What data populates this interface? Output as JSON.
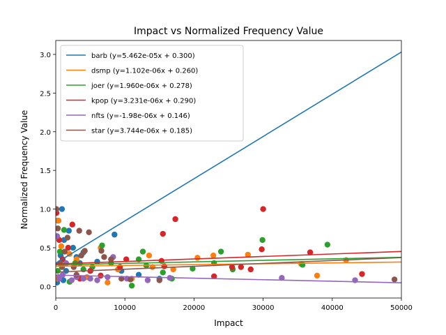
{
  "chart_data": {
    "type": "scatter",
    "title": "Impact vs Normalized Frequency Value",
    "xlabel": "Impact",
    "ylabel": "Normalized Frequency Value",
    "xlim": [
      0,
      50000
    ],
    "ylim": [
      -0.15,
      3.18
    ],
    "x_ticks": [
      0,
      10000,
      20000,
      30000,
      40000,
      50000
    ],
    "x_tick_labels": [
      "0",
      "10000",
      "20000",
      "30000",
      "40000",
      "50000"
    ],
    "y_ticks": [
      0.0,
      0.5,
      1.0,
      1.5,
      2.0,
      2.5,
      3.0
    ],
    "y_tick_labels": [
      "0.0",
      "0.5",
      "1.0",
      "1.5",
      "2.0",
      "2.5",
      "3.0"
    ],
    "grid": false,
    "legend_position": "top-left",
    "series": [
      {
        "name": "barb",
        "color": "#1f77b4",
        "fit_label": "barb (y=5.462e-05x + 0.300)",
        "slope": 5.462e-05,
        "intercept": 0.3,
        "points": [
          [
            200,
            0.05
          ],
          [
            400,
            0.12
          ],
          [
            600,
            0.3
          ],
          [
            900,
            1.0
          ],
          [
            1200,
            0.6
          ],
          [
            1500,
            0.2
          ],
          [
            1900,
            0.72
          ],
          [
            2500,
            0.5
          ],
          [
            3000,
            0.38
          ],
          [
            3500,
            0.3
          ],
          [
            4000,
            0.44
          ],
          [
            5000,
            0.2
          ],
          [
            6000,
            0.32
          ],
          [
            8500,
            0.67
          ],
          [
            9500,
            0.2
          ],
          [
            12000,
            0.15
          ],
          [
            15000,
            0.1
          ],
          [
            300,
            0.85
          ],
          [
            700,
            0.4
          ],
          [
            1100,
            0.08
          ]
        ]
      },
      {
        "name": "dsmp",
        "color": "#ff7f0e",
        "fit_label": "dsmp (y=1.102e-06x + 0.260)",
        "slope": 1.102e-06,
        "intercept": 0.26,
        "points": [
          [
            200,
            0.1
          ],
          [
            400,
            0.85
          ],
          [
            800,
            0.52
          ],
          [
            1200,
            0.3
          ],
          [
            2000,
            0.42
          ],
          [
            3000,
            0.35
          ],
          [
            4500,
            0.12
          ],
          [
            6500,
            0.5
          ],
          [
            7500,
            0.05
          ],
          [
            9000,
            0.22
          ],
          [
            11000,
            0.1
          ],
          [
            13500,
            0.4
          ],
          [
            14000,
            0.25
          ],
          [
            17000,
            0.22
          ],
          [
            20500,
            0.37
          ],
          [
            22800,
            0.4
          ],
          [
            27800,
            0.41
          ],
          [
            35500,
            0.29
          ],
          [
            37800,
            0.14
          ],
          [
            42000,
            0.34
          ]
        ]
      },
      {
        "name": "joer",
        "color": "#2ca02c",
        "fit_label": "joer (y=1.960e-06x + 0.278)",
        "slope": 1.96e-06,
        "intercept": 0.278,
        "points": [
          [
            300,
            0.2
          ],
          [
            600,
            0.45
          ],
          [
            1200,
            0.73
          ],
          [
            2000,
            0.06
          ],
          [
            2800,
            0.3
          ],
          [
            4000,
            0.22
          ],
          [
            5300,
            0.25
          ],
          [
            6700,
            0.53
          ],
          [
            8000,
            0.3
          ],
          [
            11000,
            0.01
          ],
          [
            12000,
            0.35
          ],
          [
            12600,
            0.45
          ],
          [
            13100,
            0.27
          ],
          [
            15500,
            0.18
          ],
          [
            16800,
            0.1
          ],
          [
            19800,
            0.23
          ],
          [
            22900,
            0.3
          ],
          [
            23900,
            0.45
          ],
          [
            25600,
            0.22
          ],
          [
            29900,
            0.6
          ],
          [
            35700,
            0.28
          ],
          [
            39300,
            0.54
          ]
        ]
      },
      {
        "name": "kpop",
        "color": "#d62728",
        "fit_label": "kpop (y=3.231e-06x + 0.290)",
        "slope": 3.231e-06,
        "intercept": 0.29,
        "points": [
          [
            100,
            0.95
          ],
          [
            500,
            0.6
          ],
          [
            1000,
            0.35
          ],
          [
            1800,
            0.5
          ],
          [
            2400,
            0.8
          ],
          [
            3500,
            0.1
          ],
          [
            5000,
            0.2
          ],
          [
            6500,
            0.14
          ],
          [
            9300,
            0.25
          ],
          [
            10200,
            0.35
          ],
          [
            15300,
            0.33
          ],
          [
            15500,
            0.68
          ],
          [
            17300,
            0.87
          ],
          [
            22900,
            0.13
          ],
          [
            25500,
            0.25
          ],
          [
            26800,
            0.25
          ],
          [
            28200,
            0.22
          ],
          [
            29800,
            0.48
          ],
          [
            30000,
            1.0
          ],
          [
            36800,
            0.44
          ],
          [
            44300,
            0.16
          ],
          [
            15700,
            0.26
          ]
        ]
      },
      {
        "name": "nfts",
        "color": "#9467bd",
        "fit_label": "nfts (y=-1.98e-06x + 0.146)",
        "slope": -1.98e-06,
        "intercept": 0.146,
        "points": [
          [
            200,
            0.65
          ],
          [
            500,
            0.1
          ],
          [
            1000,
            0.15
          ],
          [
            1500,
            0.3
          ],
          [
            2300,
            0.08
          ],
          [
            3000,
            0.12
          ],
          [
            4000,
            0.1
          ],
          [
            5000,
            0.1
          ],
          [
            6000,
            0.08
          ],
          [
            7500,
            0.12
          ],
          [
            8300,
            0.38
          ],
          [
            10300,
            0.1
          ],
          [
            13300,
            0.08
          ],
          [
            16500,
            0.11
          ],
          [
            32700,
            0.11
          ],
          [
            43300,
            0.08
          ]
        ]
      },
      {
        "name": "star",
        "color": "#8c564b",
        "fit_label": "star (y=3.744e-06x + 0.185)",
        "slope": 3.744e-06,
        "intercept": 0.185,
        "points": [
          [
            100,
            1.0
          ],
          [
            300,
            0.75
          ],
          [
            600,
            0.3
          ],
          [
            900,
            0.25
          ],
          [
            1300,
            0.45
          ],
          [
            1700,
            0.63
          ],
          [
            2600,
            0.25
          ],
          [
            3000,
            0.15
          ],
          [
            3400,
            0.72
          ],
          [
            3700,
            0.4
          ],
          [
            4200,
            0.46
          ],
          [
            4800,
            0.7
          ],
          [
            6600,
            0.46
          ],
          [
            7000,
            0.38
          ],
          [
            8000,
            0.35
          ],
          [
            9500,
            0.1
          ],
          [
            10800,
            0.09
          ],
          [
            15000,
            0.08
          ],
          [
            49000,
            0.09
          ]
        ]
      }
    ]
  }
}
